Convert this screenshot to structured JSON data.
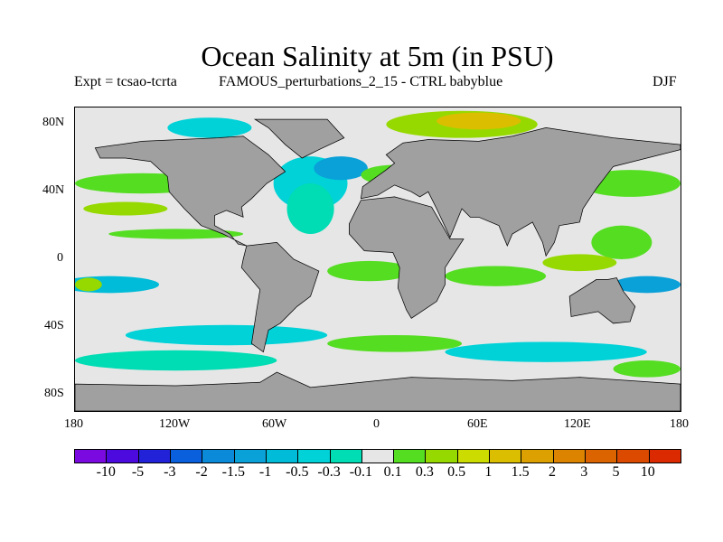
{
  "title": "Ocean Salinity at 5m (in PSU)",
  "experiment": "Expt = tcsao-tcrta",
  "description": "FAMOUS_perturbations_2_15 - CTRL babyblue",
  "season": "DJF",
  "lat_labels": [
    "80N",
    "40N",
    "0",
    "40S",
    "80S"
  ],
  "lon_labels": [
    "180",
    "120W",
    "60W",
    "0",
    "60E",
    "120E",
    "180"
  ],
  "colorbar": {
    "labels": [
      "-10",
      "-5",
      "-3",
      "-2",
      "-1.5",
      "-1",
      "-0.5",
      "-0.3",
      "-0.1",
      "0.1",
      "0.3",
      "0.5",
      "1",
      "1.5",
      "2",
      "3",
      "5",
      "10"
    ],
    "colors": [
      "#7a0adf",
      "#4d0adf",
      "#2222d8",
      "#0a5fdc",
      "#0a8ad8",
      "#0aa0d8",
      "#00bcd8",
      "#00d2d8",
      "#00dcb4",
      "#e6e6e6",
      "#55dd22",
      "#96d900",
      "#cddc00",
      "#dcbe00",
      "#dca000",
      "#dc8400",
      "#dc6400",
      "#dc4a00",
      "#dc2a00"
    ]
  },
  "colors": {
    "land": "#a0a0a0",
    "ocean_neutral": "#e6e6e6"
  }
}
